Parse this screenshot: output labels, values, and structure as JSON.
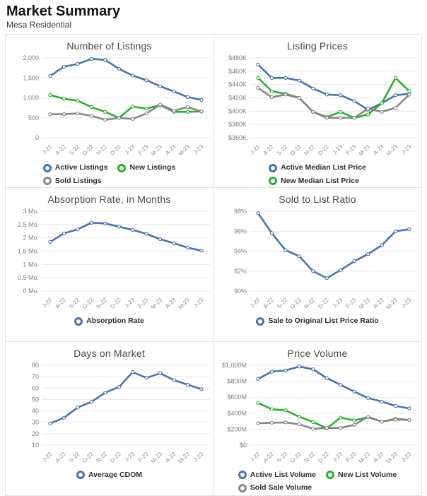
{
  "page": {
    "title": "Market Summary",
    "subtitle": "Mesa Residential"
  },
  "colors": {
    "blue": "#4a74a8",
    "green": "#2eae2e",
    "gray": "#868686",
    "grid_line": "#e7e7e7",
    "ytick_text": "#7d7d7d",
    "xtick_text": "#8a8a8a",
    "title_text": "#474747",
    "border": "#e2e2e2"
  },
  "categories": [
    "J-22",
    "A-22",
    "S-22",
    "O-22",
    "N-22",
    "D-22",
    "J-23",
    "F-23",
    "M-23",
    "A-23",
    "M-23",
    "J-23"
  ],
  "chart_data": [
    {
      "type": "line",
      "title": "Number of Listings",
      "ylim": [
        0,
        2000
      ],
      "yticks": [
        {
          "v": 0,
          "label": "0"
        },
        {
          "v": 500,
          "label": "500"
        },
        {
          "v": 1000,
          "label": "1,000"
        },
        {
          "v": 1500,
          "label": "1,500"
        },
        {
          "v": 2000,
          "label": "2,000"
        }
      ],
      "series": [
        {
          "name": "Active Listings",
          "color_key": "blue",
          "values": [
            1550,
            1780,
            1850,
            1975,
            1950,
            1730,
            1560,
            1440,
            1290,
            1160,
            1020,
            950
          ]
        },
        {
          "name": "New Listings",
          "color_key": "green",
          "values": [
            1070,
            975,
            930,
            770,
            650,
            500,
            780,
            730,
            820,
            650,
            650,
            660
          ]
        },
        {
          "name": "Sold Listings",
          "color_key": "gray",
          "values": [
            590,
            590,
            610,
            550,
            450,
            500,
            470,
            610,
            830,
            680,
            770,
            660
          ]
        }
      ],
      "legend_rows": [
        [
          0,
          1
        ],
        [
          2
        ]
      ]
    },
    {
      "type": "line",
      "title": "Listing Prices",
      "ylim": [
        360,
        480
      ],
      "yticks": [
        {
          "v": 360,
          "label": "$360K"
        },
        {
          "v": 380,
          "label": "$380K"
        },
        {
          "v": 400,
          "label": "$400K"
        },
        {
          "v": 420,
          "label": "$420K"
        },
        {
          "v": 440,
          "label": "$440K"
        },
        {
          "v": 460,
          "label": "$460K"
        },
        {
          "v": 480,
          "label": "$480K"
        }
      ],
      "series": [
        {
          "name": "Active Median List Price",
          "color_key": "blue",
          "values": [
            470,
            450,
            450,
            446,
            434,
            425,
            424,
            415,
            402,
            412,
            424,
            426
          ]
        },
        {
          "name": "New Median List Price",
          "color_key": "green",
          "values": [
            450,
            430,
            426,
            420,
            399,
            391,
            399,
            390,
            395,
            412,
            450,
            430
          ]
        },
        {
          "name": "Sold Median Sale Price",
          "color_key": "gray",
          "values": [
            435,
            421,
            425,
            420,
            399,
            390,
            390,
            390,
            404,
            399,
            405,
            425
          ]
        }
      ],
      "legend_rows": [
        [
          0
        ],
        [
          1
        ],
        [
          2
        ]
      ]
    },
    {
      "type": "line",
      "title": "Absorption Rate, in Months",
      "ylim": [
        0,
        3
      ],
      "yticks": [
        {
          "v": 0,
          "label": "0 Mo."
        },
        {
          "v": 0.5,
          "label": "0.5 Mo."
        },
        {
          "v": 1,
          "label": "1 Mo."
        },
        {
          "v": 1.5,
          "label": "1.5 Mo."
        },
        {
          "v": 2,
          "label": "2 Mo."
        },
        {
          "v": 2.5,
          "label": "2.5 Mo."
        },
        {
          "v": 3,
          "label": "3 Mo."
        }
      ],
      "series": [
        {
          "name": "Absorption Rate",
          "color_key": "blue",
          "values": [
            1.85,
            2.17,
            2.32,
            2.57,
            2.54,
            2.42,
            2.3,
            2.15,
            1.95,
            1.8,
            1.63,
            1.52
          ]
        }
      ],
      "legend_rows": [
        [
          0
        ]
      ]
    },
    {
      "type": "line",
      "title": "Sold to List Ratio",
      "ylim": [
        90,
        98
      ],
      "yticks": [
        {
          "v": 90,
          "label": "90%"
        },
        {
          "v": 92,
          "label": "92%"
        },
        {
          "v": 94,
          "label": "94%"
        },
        {
          "v": 96,
          "label": "96%"
        },
        {
          "v": 98,
          "label": "98%"
        }
      ],
      "series": [
        {
          "name": "Sale to Original List Price Ratio",
          "color_key": "blue",
          "values": [
            97.8,
            95.8,
            94.1,
            93.5,
            92.0,
            91.3,
            92.1,
            93.0,
            93.7,
            94.6,
            96.0,
            96.2
          ]
        }
      ],
      "legend_rows": [
        [
          0
        ]
      ]
    },
    {
      "type": "line",
      "title": "Days on Market",
      "ylim": [
        10,
        80
      ],
      "yticks": [
        {
          "v": 10,
          "label": "10"
        },
        {
          "v": 20,
          "label": "20"
        },
        {
          "v": 30,
          "label": "30"
        },
        {
          "v": 40,
          "label": "40"
        },
        {
          "v": 50,
          "label": "50"
        },
        {
          "v": 60,
          "label": "60"
        },
        {
          "v": 70,
          "label": "70"
        },
        {
          "v": 80,
          "label": "80"
        }
      ],
      "series": [
        {
          "name": "Average CDOM",
          "color_key": "blue",
          "values": [
            29,
            34,
            43,
            48,
            56,
            61,
            74,
            69,
            73,
            67,
            63,
            59
          ]
        }
      ],
      "legend_rows": [
        [
          0
        ]
      ]
    },
    {
      "type": "line",
      "title": "Price Volume",
      "ylim": [
        0,
        1000
      ],
      "yticks": [
        {
          "v": 0,
          "label": "$0"
        },
        {
          "v": 200,
          "label": "$200M"
        },
        {
          "v": 400,
          "label": "$400M"
        },
        {
          "v": 600,
          "label": "$600M"
        },
        {
          "v": 800,
          "label": "$800M"
        },
        {
          "v": 1000,
          "label": "$1,000M"
        }
      ],
      "series": [
        {
          "name": "Active List Volume",
          "color_key": "blue",
          "values": [
            830,
            920,
            935,
            985,
            950,
            840,
            755,
            670,
            590,
            545,
            490,
            460
          ]
        },
        {
          "name": "New List Volume",
          "color_key": "green",
          "values": [
            530,
            450,
            435,
            355,
            290,
            210,
            345,
            310,
            350,
            295,
            330,
            315
          ]
        },
        {
          "name": "Sold Sale Volume",
          "color_key": "gray",
          "values": [
            275,
            280,
            285,
            260,
            205,
            215,
            215,
            255,
            355,
            295,
            320,
            315
          ]
        }
      ],
      "legend_rows": [
        [
          0,
          1
        ],
        [
          2
        ]
      ]
    }
  ]
}
